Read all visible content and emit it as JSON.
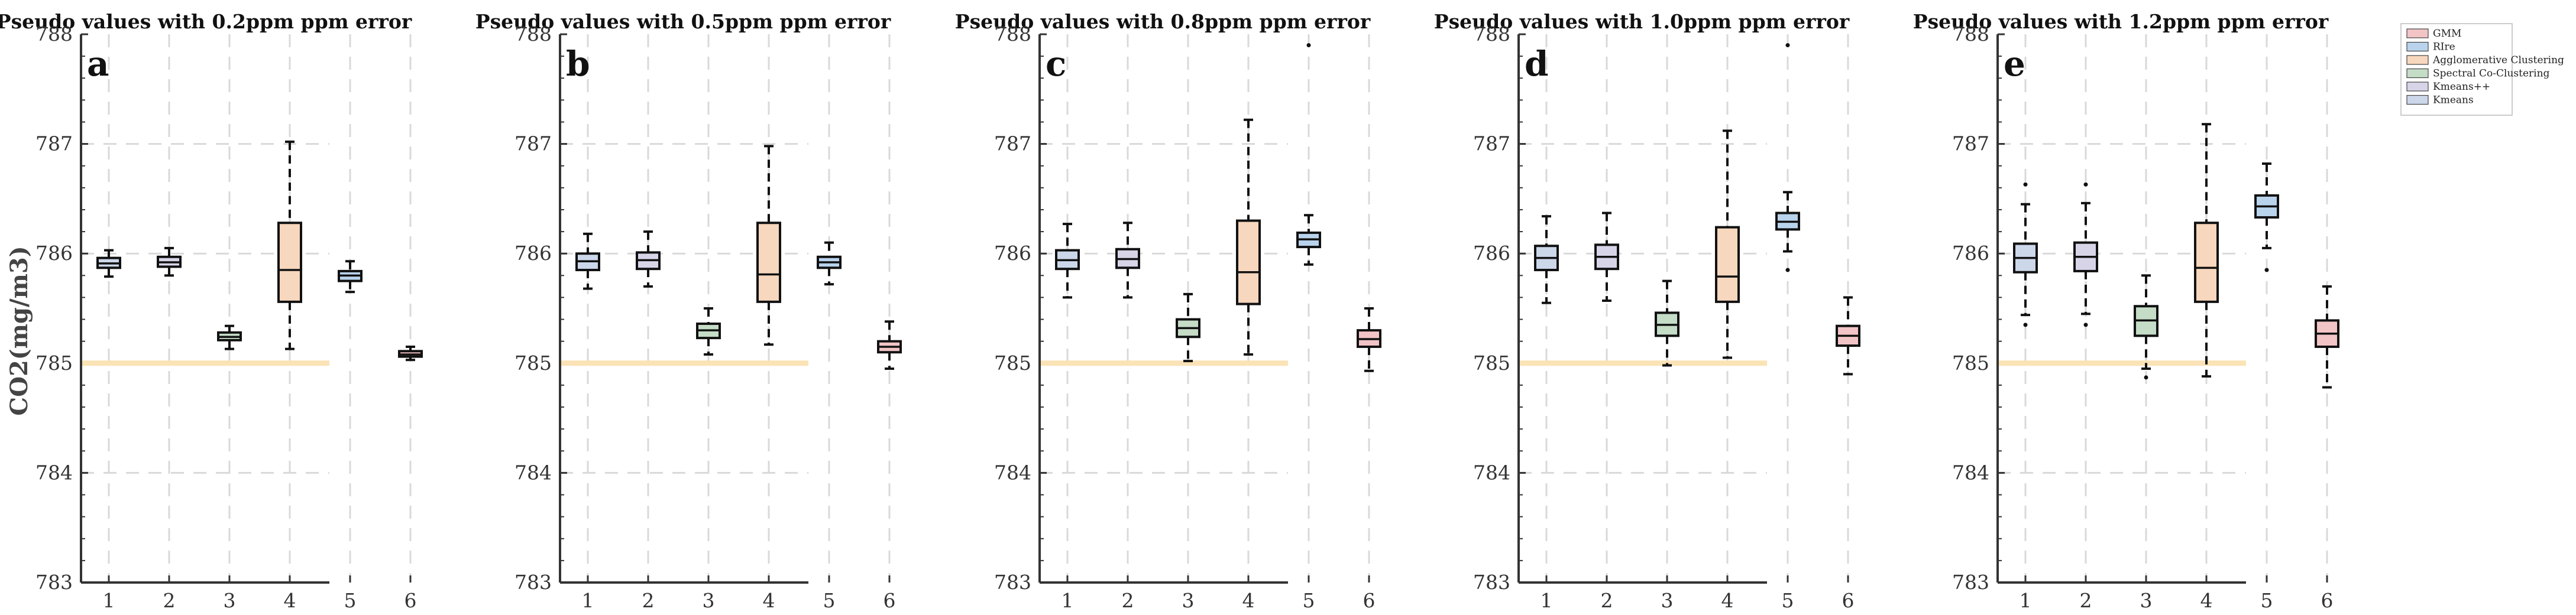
{
  "chart_data": {
    "type": "box",
    "ylabel": "CO2(mg/m3)",
    "ylim": [
      783,
      788
    ],
    "yticks": [
      783,
      784,
      785,
      786,
      787,
      788
    ],
    "categories": [
      "1",
      "2",
      "3",
      "4",
      "5",
      "6"
    ],
    "reference_line": 785,
    "colors": {
      "reference_line": "#fbe3b6",
      "grid": "#d9d9d9",
      "GMM": "#f2c4c6",
      "RIre": "#b9d3ec",
      "Agglomerative Clustering": "#f7d7bd",
      "Spectral Co-Clustering": "#c5dcc6",
      "Kmeans++": "#d8d4e8",
      "Kmeans": "#ccd7ea"
    },
    "legend": [
      {
        "label": "GMM",
        "color": "#f2c4c6"
      },
      {
        "label": "RIre",
        "color": "#b9d3ec"
      },
      {
        "label": "Agglomerative Clustering",
        "color": "#f7d7bd"
      },
      {
        "label": "Spectral Co-Clustering",
        "color": "#c5dcc6"
      },
      {
        "label": "Kmeans++",
        "color": "#d8d4e8"
      },
      {
        "label": "Kmeans",
        "color": "#ccd7ea"
      }
    ],
    "panels": [
      {
        "letter": "a",
        "title": "Pseudo values with 0.2ppm ppm error",
        "boxes": [
          {
            "category": "1",
            "method": "Kmeans",
            "q1": 785.87,
            "median": 785.91,
            "q3": 785.96,
            "wlo": 785.79,
            "whi": 786.03,
            "outliers": []
          },
          {
            "category": "2",
            "method": "Kmeans++",
            "q1": 785.88,
            "median": 785.92,
            "q3": 785.97,
            "wlo": 785.8,
            "whi": 786.05,
            "outliers": []
          },
          {
            "category": "3",
            "method": "Spectral Co-Clustering",
            "q1": 785.21,
            "median": 785.24,
            "q3": 785.28,
            "wlo": 785.13,
            "whi": 785.34,
            "outliers": []
          },
          {
            "category": "4",
            "method": "Agglomerative Clustering",
            "q1": 785.56,
            "median": 785.85,
            "q3": 786.28,
            "wlo": 785.13,
            "whi": 787.02,
            "outliers": []
          },
          {
            "category": "5",
            "method": "RIre",
            "q1": 785.75,
            "median": 785.8,
            "q3": 785.84,
            "wlo": 785.65,
            "whi": 785.93,
            "outliers": []
          },
          {
            "category": "6",
            "method": "GMM",
            "q1": 785.06,
            "median": 785.08,
            "q3": 785.11,
            "wlo": 785.03,
            "whi": 785.15,
            "outliers": []
          }
        ]
      },
      {
        "letter": "b",
        "title": "Pseudo values with 0.5ppm ppm error",
        "boxes": [
          {
            "category": "1",
            "method": "Kmeans",
            "q1": 785.85,
            "median": 785.93,
            "q3": 786.0,
            "wlo": 785.68,
            "whi": 786.18,
            "outliers": []
          },
          {
            "category": "2",
            "method": "Kmeans++",
            "q1": 785.86,
            "median": 785.94,
            "q3": 786.01,
            "wlo": 785.7,
            "whi": 786.2,
            "outliers": []
          },
          {
            "category": "3",
            "method": "Spectral Co-Clustering",
            "q1": 785.23,
            "median": 785.3,
            "q3": 785.36,
            "wlo": 785.08,
            "whi": 785.5,
            "outliers": []
          },
          {
            "category": "4",
            "method": "Agglomerative Clustering",
            "q1": 785.56,
            "median": 785.81,
            "q3": 786.28,
            "wlo": 785.17,
            "whi": 786.98,
            "outliers": []
          },
          {
            "category": "5",
            "method": "RIre",
            "q1": 785.87,
            "median": 785.92,
            "q3": 785.97,
            "wlo": 785.72,
            "whi": 786.1,
            "outliers": []
          },
          {
            "category": "6",
            "method": "GMM",
            "q1": 785.1,
            "median": 785.15,
            "q3": 785.2,
            "wlo": 784.95,
            "whi": 785.38,
            "outliers": []
          }
        ]
      },
      {
        "letter": "c",
        "title": "Pseudo values with 0.8ppm ppm error",
        "boxes": [
          {
            "category": "1",
            "method": "Kmeans",
            "q1": 785.86,
            "median": 785.94,
            "q3": 786.03,
            "wlo": 785.6,
            "whi": 786.27,
            "outliers": []
          },
          {
            "category": "2",
            "method": "Kmeans++",
            "q1": 785.87,
            "median": 785.95,
            "q3": 786.04,
            "wlo": 785.6,
            "whi": 786.28,
            "outliers": []
          },
          {
            "category": "3",
            "method": "Spectral Co-Clustering",
            "q1": 785.24,
            "median": 785.32,
            "q3": 785.4,
            "wlo": 785.02,
            "whi": 785.63,
            "outliers": []
          },
          {
            "category": "4",
            "method": "Agglomerative Clustering",
            "q1": 785.54,
            "median": 785.83,
            "q3": 786.3,
            "wlo": 785.08,
            "whi": 787.22,
            "outliers": []
          },
          {
            "category": "5",
            "method": "RIre",
            "q1": 786.06,
            "median": 786.13,
            "q3": 786.19,
            "wlo": 785.9,
            "whi": 786.35,
            "outliers": [
              787.9
            ]
          },
          {
            "category": "6",
            "method": "GMM",
            "q1": 785.15,
            "median": 785.22,
            "q3": 785.3,
            "wlo": 784.93,
            "whi": 785.5,
            "outliers": []
          }
        ]
      },
      {
        "letter": "d",
        "title": "Pseudo values with 1.0ppm ppm error",
        "boxes": [
          {
            "category": "1",
            "method": "Kmeans",
            "q1": 785.85,
            "median": 785.96,
            "q3": 786.07,
            "wlo": 785.55,
            "whi": 786.34,
            "outliers": []
          },
          {
            "category": "2",
            "method": "Kmeans++",
            "q1": 785.86,
            "median": 785.97,
            "q3": 786.08,
            "wlo": 785.57,
            "whi": 786.37,
            "outliers": []
          },
          {
            "category": "3",
            "method": "Spectral Co-Clustering",
            "q1": 785.25,
            "median": 785.35,
            "q3": 785.46,
            "wlo": 784.98,
            "whi": 785.75,
            "outliers": []
          },
          {
            "category": "4",
            "method": "Agglomerative Clustering",
            "q1": 785.56,
            "median": 785.79,
            "q3": 786.24,
            "wlo": 785.05,
            "whi": 787.12,
            "outliers": []
          },
          {
            "category": "5",
            "method": "RIre",
            "q1": 786.22,
            "median": 786.29,
            "q3": 786.37,
            "wlo": 786.02,
            "whi": 786.56,
            "outliers": [
              787.9,
              785.85
            ]
          },
          {
            "category": "6",
            "method": "GMM",
            "q1": 785.16,
            "median": 785.25,
            "q3": 785.34,
            "wlo": 784.9,
            "whi": 785.6,
            "outliers": []
          }
        ]
      },
      {
        "letter": "e",
        "title": "Pseudo values with 1.2ppm ppm error",
        "boxes": [
          {
            "category": "1",
            "method": "Kmeans",
            "q1": 785.83,
            "median": 785.96,
            "q3": 786.09,
            "wlo": 785.44,
            "whi": 786.45,
            "outliers": [
              785.35,
              786.63
            ]
          },
          {
            "category": "2",
            "method": "Kmeans++",
            "q1": 785.84,
            "median": 785.97,
            "q3": 786.1,
            "wlo": 785.45,
            "whi": 786.46,
            "outliers": [
              785.35,
              786.63
            ]
          },
          {
            "category": "3",
            "method": "Spectral Co-Clustering",
            "q1": 785.25,
            "median": 785.39,
            "q3": 785.52,
            "wlo": 784.95,
            "whi": 785.8,
            "outliers": [
              784.87
            ]
          },
          {
            "category": "4",
            "method": "Agglomerative Clustering",
            "q1": 785.56,
            "median": 785.87,
            "q3": 786.28,
            "wlo": 784.88,
            "whi": 787.18,
            "outliers": []
          },
          {
            "category": "5",
            "method": "RIre",
            "q1": 786.33,
            "median": 786.43,
            "q3": 786.53,
            "wlo": 786.05,
            "whi": 786.82,
            "outliers": [
              785.85
            ]
          },
          {
            "category": "6",
            "method": "GMM",
            "q1": 785.15,
            "median": 785.27,
            "q3": 785.39,
            "wlo": 784.78,
            "whi": 785.7,
            "outliers": []
          }
        ]
      }
    ]
  }
}
